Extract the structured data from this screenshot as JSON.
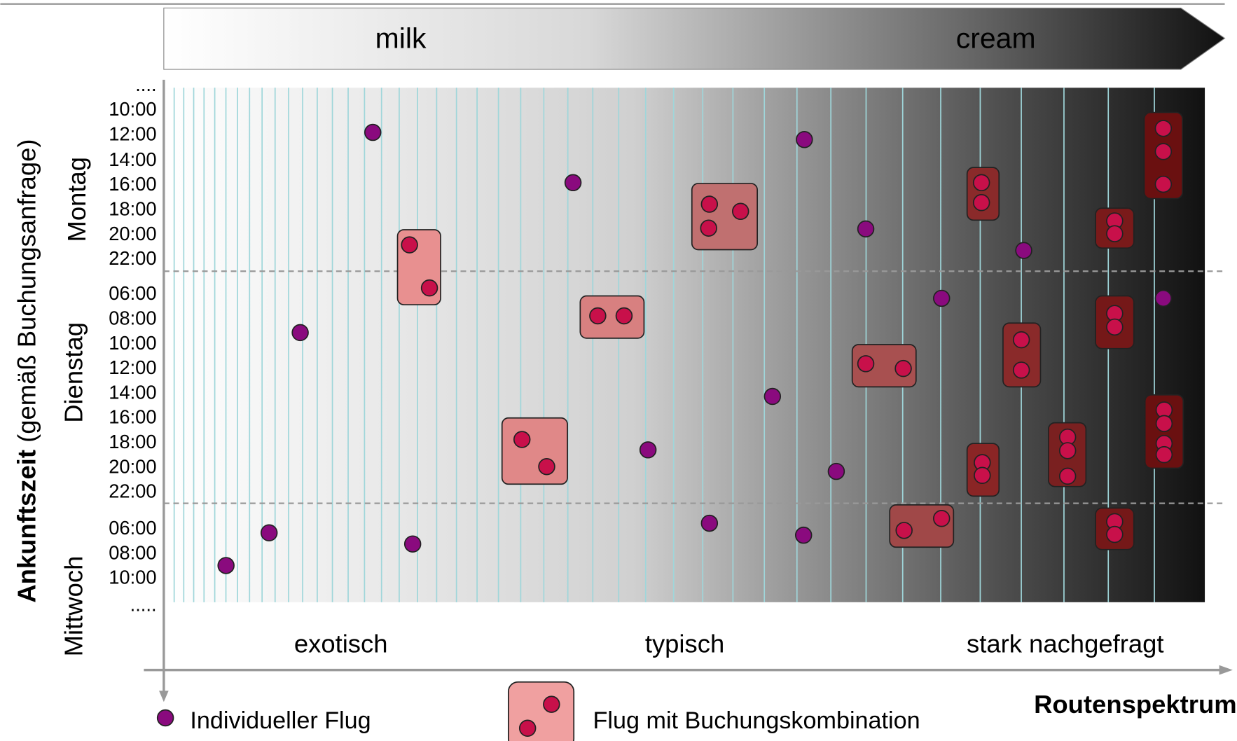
{
  "header": {
    "left": "milk",
    "right": "cream"
  },
  "y_axis": {
    "title_bold": "Ankunftszeit",
    "title_rest": "(gemäß Buchungsanfrage)"
  },
  "days": [
    {
      "name": "Montag",
      "times": [
        "....",
        "10:00",
        "12:00",
        "14:00",
        "16:00",
        "18:00",
        "20:00",
        "22:00"
      ]
    },
    {
      "name": "Dienstag",
      "times": [
        "06:00",
        "08:00",
        "10:00",
        "12:00",
        "14:00",
        "16:00",
        "18:00",
        "20:00",
        "22:00"
      ]
    },
    {
      "name": "Mittwoch",
      "times": [
        "06:00",
        "08:00",
        "10:00",
        "....."
      ]
    }
  ],
  "x_categories": [
    "exotisch",
    "typisch",
    "stark nachgefragt"
  ],
  "x_axis": {
    "title": "Routenspektrum"
  },
  "legend": {
    "individual": "Individueller Flug",
    "combination": "Flug mit Buchungskombination"
  }
}
